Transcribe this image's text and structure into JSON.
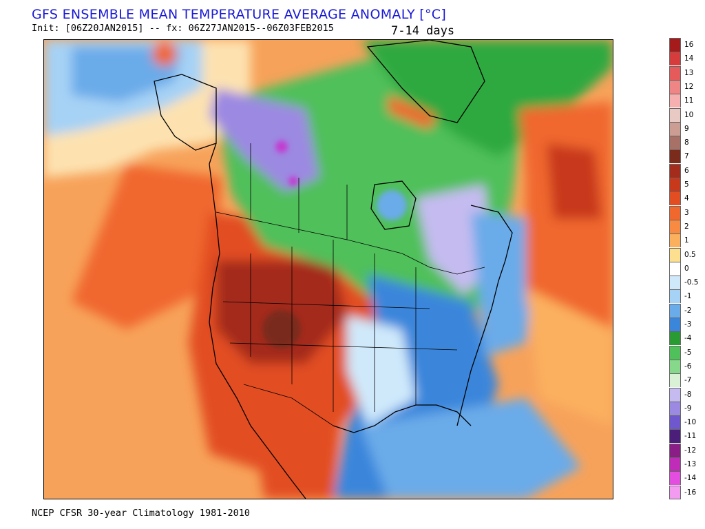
{
  "header": {
    "title": "GFS ENSEMBLE MEAN TEMPERATURE AVERAGE ANOMALY [°C]",
    "subtitle": "Init: [06Z20JAN2015] -- fx: 06Z27JAN2015--06Z03FEB2015",
    "period": "7-14 days"
  },
  "footer": {
    "text": "NCEP CFSR 30-year Climatology 1981-2010"
  },
  "map": {
    "region": "North America",
    "colors": {
      "ocean_warm": "#f7a25a",
      "warm_west": "#e8673a",
      "hot_core": "#9e2a1c",
      "neutral": "#fde2b0",
      "cool_east": "#5b9ee6",
      "cold_north": "#4fc761",
      "very_cold": "#8f7fd9",
      "extreme_cold": "#c33ad0",
      "greenland_cold": "#2fa93f"
    }
  },
  "legend": {
    "items": [
      {
        "label": "16",
        "color": "#a51b1b"
      },
      {
        "label": "14",
        "color": "#d63c3c"
      },
      {
        "label": "13",
        "color": "#e55b5b"
      },
      {
        "label": "12",
        "color": "#ef8585"
      },
      {
        "label": "11",
        "color": "#f6b0b0"
      },
      {
        "label": "10",
        "color": "#e9c9c3"
      },
      {
        "label": "9",
        "color": "#cc9d93"
      },
      {
        "label": "8",
        "color": "#a87168"
      },
      {
        "label": "7",
        "color": "#7a2b1b"
      },
      {
        "label": "6",
        "color": "#a42c1c"
      },
      {
        "label": "5",
        "color": "#c8391c"
      },
      {
        "label": "4",
        "color": "#e24e21"
      },
      {
        "label": "3",
        "color": "#f0682e"
      },
      {
        "label": "2",
        "color": "#f88a41"
      },
      {
        "label": "1",
        "color": "#fbb05e"
      },
      {
        "label": "0.5",
        "color": "#fde08f"
      },
      {
        "label": "0",
        "color": "#ffffff"
      },
      {
        "label": "-0.5",
        "color": "#cfe9fb"
      },
      {
        "label": "-1",
        "color": "#a6d2f5"
      },
      {
        "label": "-2",
        "color": "#6aabe9"
      },
      {
        "label": "-3",
        "color": "#3a86db"
      },
      {
        "label": "-4",
        "color": "#2a9b33"
      },
      {
        "label": "-5",
        "color": "#4fc05a"
      },
      {
        "label": "-6",
        "color": "#86d98a"
      },
      {
        "label": "-7",
        "color": "#d9f2d6"
      },
      {
        "label": "-8",
        "color": "#c5bbf0"
      },
      {
        "label": "-9",
        "color": "#9c89e2"
      },
      {
        "label": "-10",
        "color": "#6f57cd"
      },
      {
        "label": "-11",
        "color": "#4b1f79"
      },
      {
        "label": "-12",
        "color": "#8b1d86"
      },
      {
        "label": "-13",
        "color": "#bf2cb8"
      },
      {
        "label": "-14",
        "color": "#e34de0"
      },
      {
        "label": "-16",
        "color": "#f39af1"
      }
    ]
  }
}
